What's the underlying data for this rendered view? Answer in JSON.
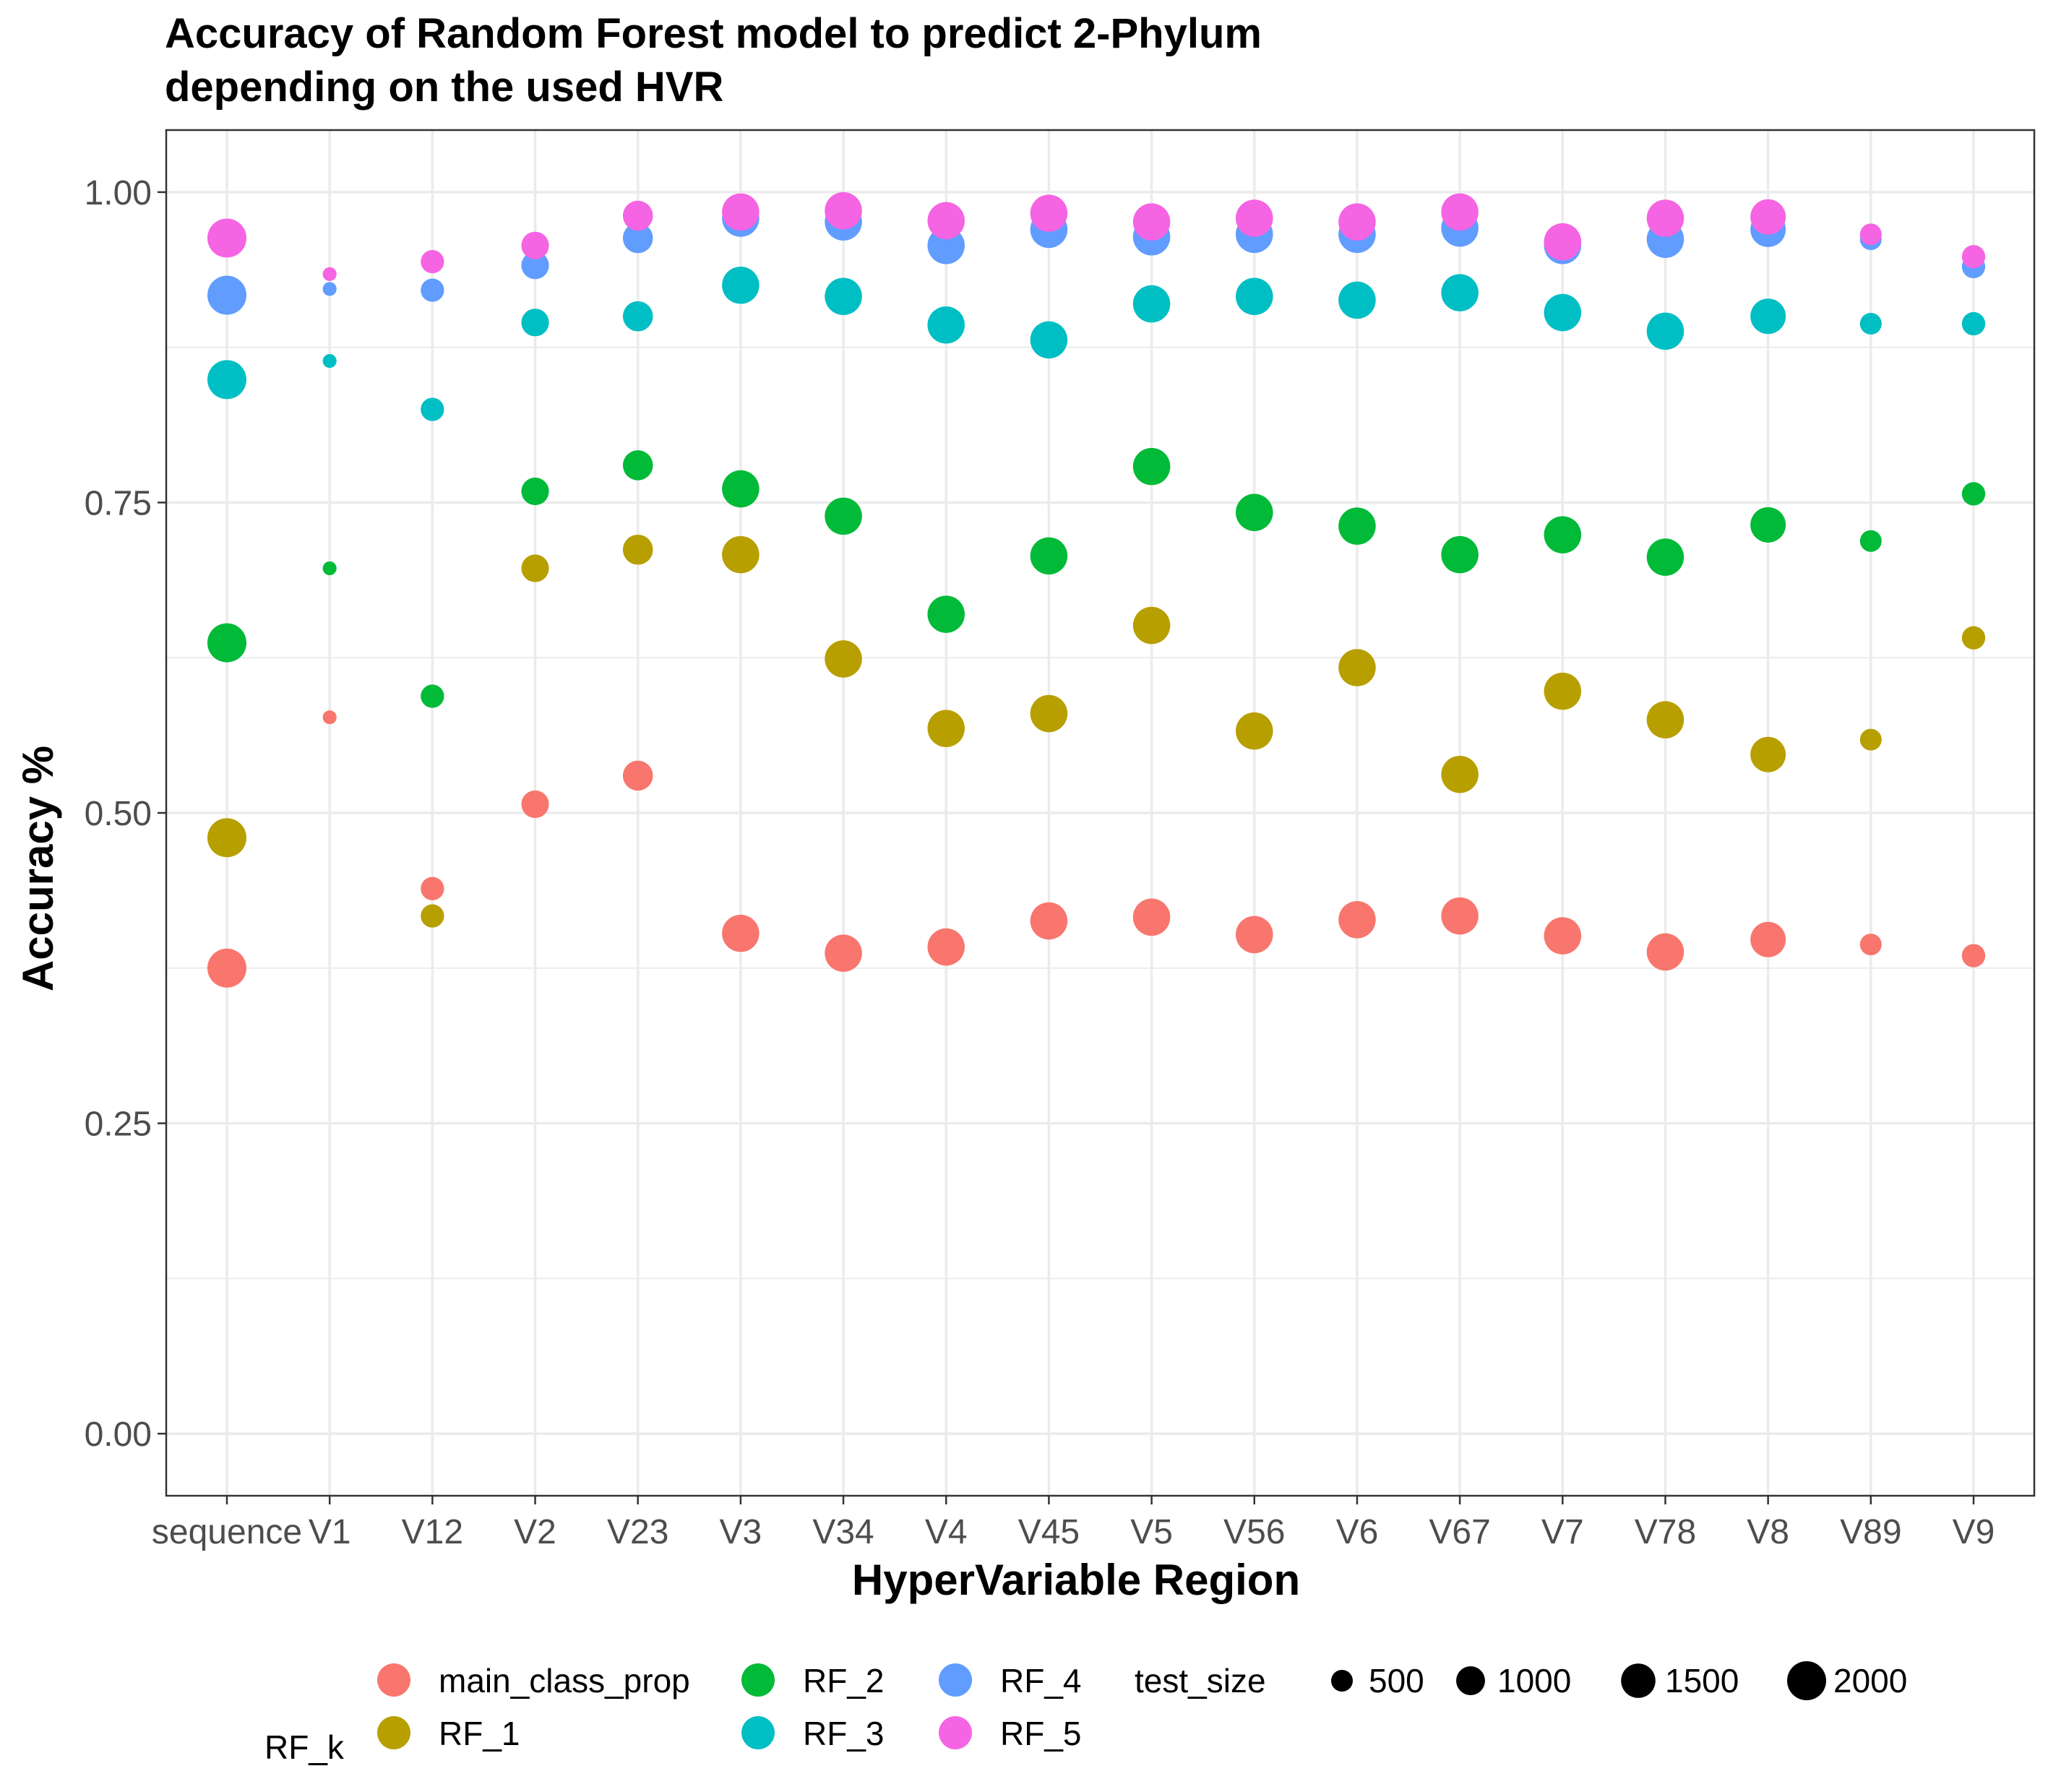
{
  "chart_data": {
    "type": "scatter",
    "title_line1": "Accuracy of Random Forest model to predict 2-Phylum",
    "title_line2": "depending on the used HVR",
    "xlabel": "HyperVariable Region",
    "ylabel": "Accuracy %",
    "categories": [
      "sequence",
      "V1",
      "V12",
      "V2",
      "V23",
      "V3",
      "V34",
      "V4",
      "V45",
      "V5",
      "V56",
      "V6",
      "V67",
      "V7",
      "V78",
      "V8",
      "V89",
      "V9"
    ],
    "ylim": [
      -0.05,
      1.05
    ],
    "y_ticks": [
      0.0,
      0.25,
      0.5,
      0.75,
      1.0
    ],
    "y_tick_labels": [
      "0.00",
      "0.25",
      "0.50",
      "0.75",
      "1.00"
    ],
    "grid": true,
    "legend_position": "bottom",
    "color_legend_title": "RF_k",
    "size_legend_title": "test_size",
    "size_legend": [
      {
        "label": "500",
        "value": 500
      },
      {
        "label": "1000",
        "value": 1000
      },
      {
        "label": "1500",
        "value": 1500
      },
      {
        "label": "2000",
        "value": 2000
      }
    ],
    "test_size": [
      2000,
      150,
      600,
      900,
      1100,
      1800,
      1800,
      1800,
      1800,
      1800,
      1800,
      1800,
      1800,
      1800,
      1800,
      1600,
      500,
      600
    ],
    "series": [
      {
        "name": "main_class_prop",
        "color": "#F8766D",
        "values": [
          0.375,
          0.577,
          0.439,
          0.507,
          0.53,
          0.403,
          0.387,
          0.392,
          0.413,
          0.416,
          0.402,
          0.414,
          0.417,
          0.401,
          0.388,
          0.398,
          0.394,
          0.385
        ]
      },
      {
        "name": "RF_1",
        "color": "#B79F00",
        "values": [
          0.48,
          null,
          0.417,
          0.697,
          0.712,
          0.708,
          0.624,
          0.568,
          0.58,
          0.651,
          0.566,
          0.617,
          0.531,
          0.598,
          0.575,
          0.547,
          0.559,
          0.641
        ]
      },
      {
        "name": "RF_2",
        "color": "#00BA38",
        "values": [
          0.637,
          0.697,
          0.594,
          0.759,
          0.78,
          0.761,
          0.739,
          0.66,
          0.707,
          0.779,
          0.742,
          0.731,
          0.708,
          0.724,
          0.706,
          0.732,
          0.719,
          0.757
        ]
      },
      {
        "name": "RF_3",
        "color": "#00BFC4",
        "values": [
          0.849,
          0.864,
          0.825,
          0.895,
          0.9,
          0.925,
          0.916,
          0.893,
          0.881,
          0.91,
          0.916,
          0.913,
          0.919,
          0.903,
          0.888,
          0.9,
          0.894,
          0.894
        ]
      },
      {
        "name": "RF_4",
        "color": "#619CFF",
        "values": [
          0.917,
          0.922,
          0.921,
          0.941,
          0.963,
          0.979,
          0.976,
          0.957,
          0.97,
          0.964,
          0.966,
          0.966,
          0.971,
          0.957,
          0.962,
          0.97,
          0.962,
          0.94
        ]
      },
      {
        "name": "RF_5",
        "color": "#F564E3",
        "values": [
          0.963,
          0.934,
          0.944,
          0.957,
          0.981,
          0.984,
          0.985,
          0.977,
          0.983,
          0.976,
          0.979,
          0.976,
          0.984,
          0.96,
          0.979,
          0.98,
          0.966,
          0.948
        ]
      }
    ]
  }
}
